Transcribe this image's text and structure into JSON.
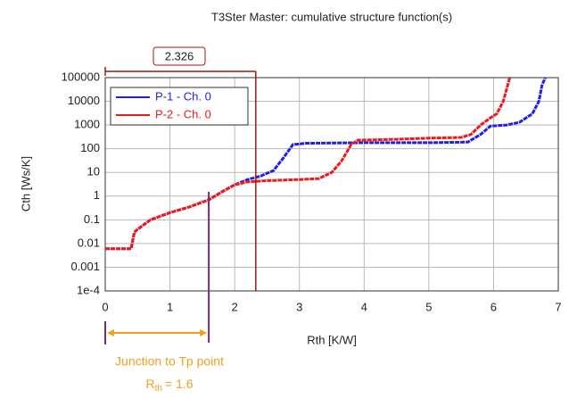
{
  "chart_data": {
    "type": "line",
    "title": "T3Ster Master: cumulative structure function(s)",
    "xlabel": "Rth  [K/W]",
    "ylabel": "Cth  [Ws/K]",
    "xlim": [
      0,
      7
    ],
    "xticks": [
      0,
      1,
      2,
      3,
      4,
      5,
      6,
      7
    ],
    "ylim": [
      0.0001,
      100000
    ],
    "log_y": true,
    "yticks": [
      {
        "value": 0.0001,
        "label": "1e-4"
      },
      0.001,
      0.01,
      0.1,
      1,
      10,
      100,
      1000,
      10000,
      100000
    ],
    "grid": true,
    "legend": "upper left",
    "series": [
      {
        "name": "P-1 - Ch. 0",
        "color": "#1f1fe8",
        "x": [
          0,
          0.4,
          0.45,
          0.5,
          0.7,
          1.0,
          1.3,
          1.6,
          1.8,
          2.0,
          2.2,
          2.4,
          2.6,
          2.75,
          2.9,
          3.1,
          4.0,
          5.0,
          5.6,
          5.8,
          5.95,
          6.2,
          6.4,
          6.6,
          6.7,
          6.75,
          6.8
        ],
        "values": [
          0.006,
          0.006,
          0.03,
          0.04,
          0.1,
          0.2,
          0.35,
          0.7,
          1.5,
          3,
          5,
          7,
          12,
          40,
          150,
          170,
          180,
          180,
          190,
          400,
          900,
          1000,
          1300,
          3000,
          10000,
          50000,
          100000
        ]
      },
      {
        "name": "P-2 - Ch. 0",
        "color": "#f01818",
        "x": [
          0,
          0.4,
          0.45,
          0.5,
          0.7,
          1.0,
          1.3,
          1.6,
          1.8,
          2.0,
          2.2,
          2.5,
          3.0,
          3.3,
          3.5,
          3.65,
          3.8,
          3.9,
          4.5,
          5.0,
          5.5,
          5.65,
          5.8,
          5.95,
          6.05,
          6.15,
          6.25
        ],
        "values": [
          0.006,
          0.006,
          0.03,
          0.04,
          0.1,
          0.2,
          0.35,
          0.7,
          1.5,
          3,
          4,
          4.5,
          5,
          5.5,
          10,
          30,
          150,
          230,
          250,
          280,
          300,
          400,
          1000,
          2000,
          3000,
          10000,
          100000
        ]
      }
    ],
    "annotations": {
      "marker": {
        "x": 2.326
      },
      "junction": {
        "x": 1.6,
        "text": "Junction to Tp point",
        "symbol": "R",
        "subscript": "th",
        "equals": "="
      }
    }
  }
}
